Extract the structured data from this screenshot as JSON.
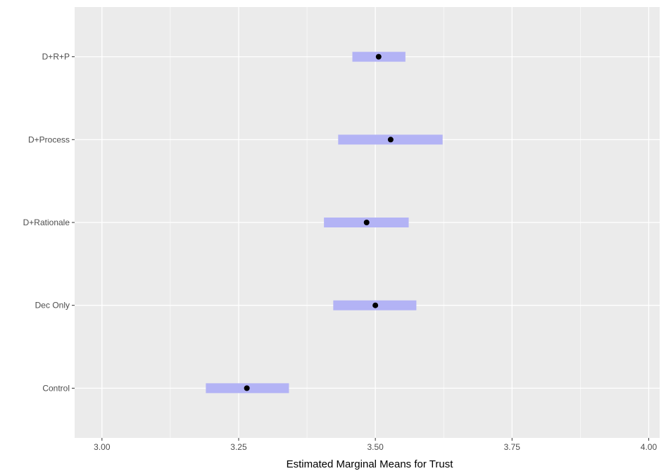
{
  "chart_data": {
    "type": "errorbar",
    "xlabel": "Estimated Marginal Means for Trust",
    "ylabel": "",
    "xlim": [
      2.95,
      4.02
    ],
    "x_ticks": [
      3.0,
      3.25,
      3.5,
      3.75,
      4.0
    ],
    "x_tick_labels": [
      "3.00",
      "3.25",
      "3.50",
      "3.75",
      "4.00"
    ],
    "categories": [
      "Control",
      "Dec Only",
      "D+Rationale",
      "D+Process",
      "D+R+P"
    ],
    "series": [
      {
        "values": [
          3.265,
          3.5,
          3.484,
          3.528,
          3.506
        ],
        "lower": [
          3.19,
          3.423,
          3.406,
          3.432,
          3.458
        ],
        "upper": [
          3.342,
          3.575,
          3.561,
          3.623,
          3.555
        ]
      }
    ],
    "grid": true,
    "legend": "none",
    "colors": {
      "panel": "#ebebeb",
      "gridline": "#ffffff",
      "interval": "#b3b3f5",
      "point": "#000000",
      "tick": "#333333"
    }
  }
}
